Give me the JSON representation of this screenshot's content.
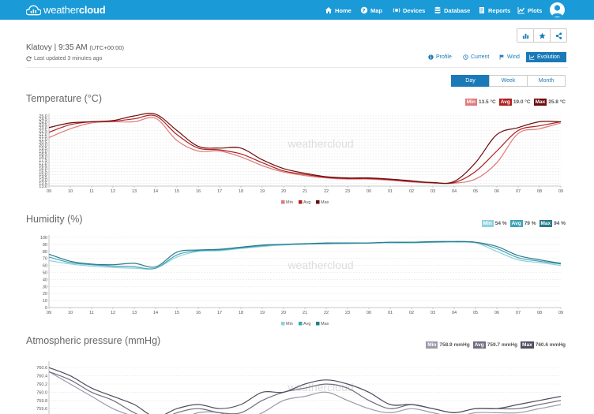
{
  "nav": {
    "brand_plain": "weather",
    "brand_bold": "cloud",
    "items": [
      {
        "label": "Home",
        "icon": "home-icon"
      },
      {
        "label": "Map",
        "icon": "globe-icon"
      },
      {
        "label": "Devices",
        "icon": "devices-icon"
      },
      {
        "label": "Database",
        "icon": "database-icon"
      },
      {
        "label": "Reports",
        "icon": "reports-icon"
      },
      {
        "label": "Plots",
        "icon": "plots-icon"
      }
    ]
  },
  "station": {
    "name_time": "Klatovy | 9:35 AM",
    "tz": "(UTC+00:00)",
    "updated": "Last updated 3 minutes ago"
  },
  "view_tabs": [
    {
      "label": "Profile",
      "icon": "info-icon",
      "active": false
    },
    {
      "label": "Current",
      "icon": "clock-icon",
      "active": false
    },
    {
      "label": "Wind",
      "icon": "flag-icon",
      "active": false
    },
    {
      "label": "Evolution",
      "icon": "chart-icon",
      "active": true
    }
  ],
  "periods": [
    {
      "label": "Day",
      "active": true
    },
    {
      "label": "Week",
      "active": false
    },
    {
      "label": "Month",
      "active": false
    }
  ],
  "watermark": "weathercloud",
  "colors": {
    "accent": "#1a9ad6",
    "accent_dark": "#1a7ab8",
    "temp_min": "#e07a7a",
    "temp_avg": "#b02020",
    "temp_max": "#6a0e0e",
    "hum_min": "#8fd0dd",
    "hum_avg": "#3fa3b8",
    "hum_max": "#2a7a8a",
    "pres_min": "#9a9aaa",
    "pres_avg": "#6e6e7e",
    "pres_max": "#4e4e5e"
  },
  "chart_data": [
    {
      "type": "line",
      "title": "Temperature (°C)",
      "summary": [
        {
          "tag": "Min",
          "value": "13.5 °C"
        },
        {
          "tag": "Avg",
          "value": "19.0 °C"
        },
        {
          "tag": "Max",
          "value": "25.8 °C"
        }
      ],
      "x": [
        "09",
        "10",
        "11",
        "12",
        "13",
        "14",
        "15",
        "16",
        "17",
        "18",
        "19",
        "20",
        "21",
        "22",
        "23",
        "00",
        "01",
        "02",
        "03",
        "04",
        "05",
        "06",
        "07",
        "08",
        "09"
      ],
      "yticks": [
        "25.0",
        "24.5",
        "24.0",
        "23.5",
        "23.0",
        "22.5",
        "22.0",
        "21.5",
        "21.0",
        "20.5",
        "20.0",
        "19.5",
        "19.0",
        "18.5",
        "18.0",
        "17.5",
        "17.0",
        "16.5",
        "16.0",
        "15.5",
        "15.0",
        "14.5",
        "14.0",
        "13.5",
        "13.0"
      ],
      "ylim": [
        13.0,
        25.0
      ],
      "series": [
        {
          "name": "Min",
          "values": [
            21.3,
            22.8,
            23.8,
            24.0,
            24.0,
            24.6,
            20.8,
            19.0,
            19.0,
            18.0,
            16.5,
            15.4,
            14.8,
            14.4,
            14.2,
            14.2,
            14.0,
            13.7,
            13.5,
            13.5,
            14.2,
            17.0,
            22.0,
            22.8,
            23.8
          ]
        },
        {
          "name": "Avg",
          "values": [
            22.2,
            23.5,
            24.0,
            24.1,
            24.5,
            25.0,
            21.8,
            19.5,
            19.2,
            18.5,
            17.0,
            15.6,
            15.0,
            14.5,
            14.3,
            14.3,
            14.1,
            13.8,
            13.6,
            13.6,
            15.5,
            19.0,
            22.5,
            23.3,
            24.0
          ]
        },
        {
          "name": "Max",
          "values": [
            23.0,
            23.8,
            24.0,
            24.2,
            25.0,
            25.3,
            22.5,
            19.8,
            19.5,
            19.5,
            17.5,
            16.0,
            15.2,
            14.6,
            14.4,
            14.4,
            14.2,
            13.9,
            13.6,
            13.8,
            17.0,
            21.8,
            23.0,
            24.0,
            24.0
          ]
        }
      ],
      "legend": [
        "Min",
        "Avg",
        "Max"
      ]
    },
    {
      "type": "line",
      "title": "Humidity (%)",
      "summary": [
        {
          "tag": "Min",
          "value": "54 %"
        },
        {
          "tag": "Avg",
          "value": "79 %"
        },
        {
          "tag": "Max",
          "value": "94 %"
        }
      ],
      "x": [
        "09",
        "10",
        "11",
        "12",
        "13",
        "14",
        "15",
        "16",
        "17",
        "18",
        "19",
        "20",
        "21",
        "22",
        "23",
        "00",
        "01",
        "02",
        "03",
        "04",
        "05",
        "06",
        "07",
        "08",
        "09"
      ],
      "yticks": [
        "100",
        "90",
        "80",
        "70",
        "60",
        "50",
        "40",
        "30",
        "20",
        "10",
        "0"
      ],
      "ylim": [
        0,
        100
      ],
      "series": [
        {
          "name": "Min",
          "values": [
            67,
            62,
            59,
            57,
            56,
            56,
            72,
            80,
            81,
            84,
            87,
            89,
            90,
            91,
            91,
            92,
            92,
            92,
            93,
            93,
            92,
            80,
            68,
            64,
            60
          ]
        },
        {
          "name": "Avg",
          "values": [
            72,
            64,
            61,
            59,
            58,
            56,
            75,
            81,
            82,
            85,
            88,
            90,
            91,
            91,
            92,
            92,
            93,
            93,
            93,
            94,
            93,
            84,
            71,
            66,
            62
          ]
        },
        {
          "name": "Max",
          "values": [
            76,
            66,
            62,
            61,
            63,
            58,
            79,
            82,
            83,
            86,
            89,
            90,
            91,
            92,
            92,
            92,
            93,
            93,
            94,
            94,
            93,
            87,
            74,
            68,
            63
          ]
        }
      ],
      "legend": [
        "Min",
        "Avg",
        "Max"
      ]
    },
    {
      "type": "line",
      "title": "Atmospheric pressure (mmHg)",
      "summary": [
        {
          "tag": "Min",
          "value": "758.9 mmHg"
        },
        {
          "tag": "Avg",
          "value": "759.7 mmHg"
        },
        {
          "tag": "Max",
          "value": "760.6 mmHg"
        }
      ],
      "x": [
        "09",
        "10",
        "11",
        "12",
        "13",
        "14",
        "15",
        "16",
        "17",
        "18",
        "19",
        "20",
        "21",
        "22",
        "23",
        "00",
        "01",
        "02",
        "03",
        "04",
        "05",
        "06",
        "07",
        "08",
        "09"
      ],
      "yticks": [
        "760.6",
        "760.4",
        "760.2",
        "760.0",
        "759.8",
        "759.6"
      ],
      "ylim": [
        759.2,
        760.7
      ],
      "series": [
        {
          "name": "Min",
          "values": [
            760.5,
            760.2,
            759.9,
            759.6,
            759.4,
            759.2,
            759.3,
            759.5,
            759.5,
            759.3,
            759.5,
            759.8,
            759.9,
            760.0,
            759.8,
            759.6,
            759.5,
            759.6,
            759.5,
            759.4,
            759.5,
            759.5,
            759.5,
            759.6,
            759.7
          ]
        },
        {
          "name": "Avg",
          "values": [
            760.5,
            760.3,
            760.0,
            759.8,
            759.5,
            759.3,
            759.5,
            759.6,
            759.5,
            759.5,
            759.8,
            760.0,
            760.1,
            760.2,
            760.1,
            759.8,
            759.6,
            759.7,
            759.6,
            759.5,
            759.6,
            759.6,
            759.6,
            759.7,
            759.8
          ]
        },
        {
          "name": "Max",
          "values": [
            760.6,
            760.4,
            760.1,
            759.9,
            759.7,
            759.4,
            759.6,
            759.7,
            759.6,
            759.7,
            760.0,
            760.0,
            760.2,
            760.3,
            760.2,
            760.0,
            759.7,
            759.7,
            759.6,
            759.5,
            759.6,
            759.6,
            759.7,
            759.8,
            759.9
          ]
        }
      ]
    }
  ]
}
